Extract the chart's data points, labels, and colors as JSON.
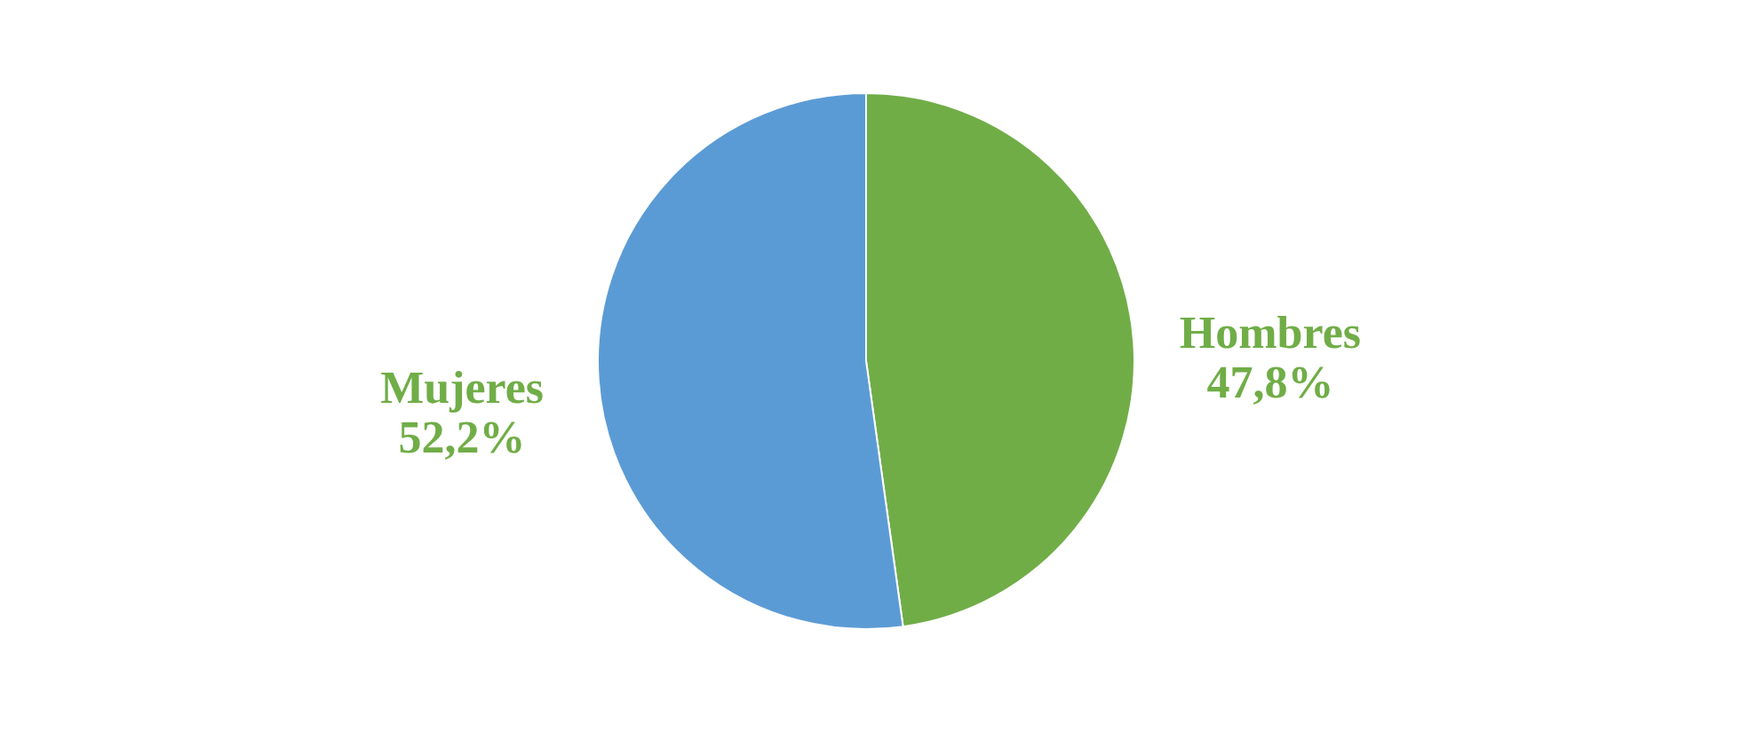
{
  "chart_data": {
    "type": "pie",
    "categories": [
      "Hombres",
      "Mujeres"
    ],
    "values": [
      47.8,
      52.2
    ],
    "colors": [
      "#70ad47",
      "#5b9bd5"
    ],
    "value_labels": [
      "47,8%",
      "52,2%"
    ]
  }
}
